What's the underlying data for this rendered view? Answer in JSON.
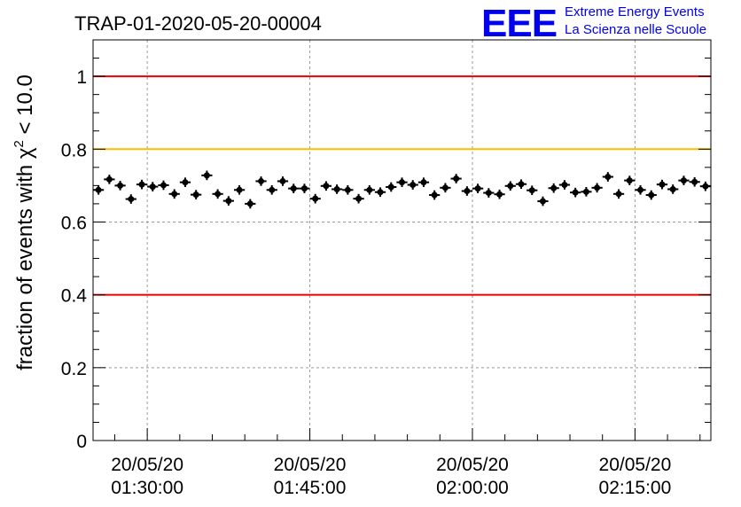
{
  "header": {
    "title": "TRAP-01-2020-05-20-00004",
    "logo_text": "EEE",
    "brand_line1": "Extreme Energy Events",
    "brand_line2": "La Scienza nelle Scuole"
  },
  "colors": {
    "brand": "#0000ee",
    "red_line": "#ee0000",
    "orange_line": "#ffbb00",
    "points": "#000000",
    "grid": "#999999"
  },
  "chart_data": {
    "type": "scatter",
    "title": "TRAP-01-2020-05-20-00004",
    "xlabel": "",
    "ylabel": "fraction of events with χ² < 10.0",
    "ylabel_parts": {
      "prefix": "fraction of events with ",
      "chi": "χ",
      "sup": "2",
      "suffix": " < 10.0"
    },
    "x_unit": "minutes after 2020-05-20 00:00:00",
    "xlim": [
      85,
      142
    ],
    "ylim": [
      0,
      1.1
    ],
    "grid": true,
    "x_ticks": [
      {
        "value": 90,
        "date": "20/05/20",
        "time": "01:30:00"
      },
      {
        "value": 105,
        "date": "20/05/20",
        "time": "01:45:00"
      },
      {
        "value": 120,
        "date": "20/05/20",
        "time": "02:00:00"
      },
      {
        "value": 135,
        "date": "20/05/20",
        "time": "02:15:00"
      }
    ],
    "y_ticks": [
      {
        "value": 0,
        "label": "0"
      },
      {
        "value": 0.2,
        "label": "0.2"
      },
      {
        "value": 0.4,
        "label": "0.4"
      },
      {
        "value": 0.6,
        "label": "0.6"
      },
      {
        "value": 0.8,
        "label": "0.8"
      },
      {
        "value": 1.0,
        "label": "1"
      }
    ],
    "reference_lines": [
      {
        "y": 1.0,
        "color": "#ee0000"
      },
      {
        "y": 0.8,
        "color": "#ffbb00"
      },
      {
        "y": 0.4,
        "color": "#ee0000"
      }
    ],
    "points": {
      "x": [
        85.5,
        86.5,
        87.5,
        88.5,
        89.5,
        90.5,
        91.5,
        92.5,
        93.5,
        94.5,
        95.5,
        96.5,
        97.5,
        98.5,
        99.5,
        100.5,
        101.5,
        102.5,
        103.5,
        104.5,
        105.5,
        106.5,
        107.5,
        108.5,
        109.5,
        110.5,
        111.5,
        112.5,
        113.5,
        114.5,
        115.5,
        116.5,
        117.5,
        118.5,
        119.5,
        120.5,
        121.5,
        122.5,
        123.5,
        124.5,
        125.5,
        126.5,
        127.5,
        128.5,
        129.5,
        130.5,
        131.5,
        132.5,
        133.5,
        134.5,
        135.5,
        136.5,
        137.5,
        138.5,
        139.5,
        140.5,
        141.5
      ],
      "y": [
        0.688,
        0.717,
        0.7,
        0.663,
        0.703,
        0.697,
        0.701,
        0.677,
        0.709,
        0.675,
        0.728,
        0.677,
        0.658,
        0.688,
        0.65,
        0.712,
        0.688,
        0.712,
        0.692,
        0.692,
        0.664,
        0.699,
        0.69,
        0.688,
        0.664,
        0.688,
        0.682,
        0.696,
        0.709,
        0.702,
        0.709,
        0.674,
        0.694,
        0.719,
        0.685,
        0.692,
        0.68,
        0.676,
        0.699,
        0.704,
        0.687,
        0.657,
        0.693,
        0.702,
        0.681,
        0.683,
        0.694,
        0.724,
        0.677,
        0.714,
        0.688,
        0.674,
        0.703,
        0.69,
        0.714,
        0.71,
        0.698
      ],
      "x_err": 0.5,
      "y_err": 0.013
    }
  }
}
